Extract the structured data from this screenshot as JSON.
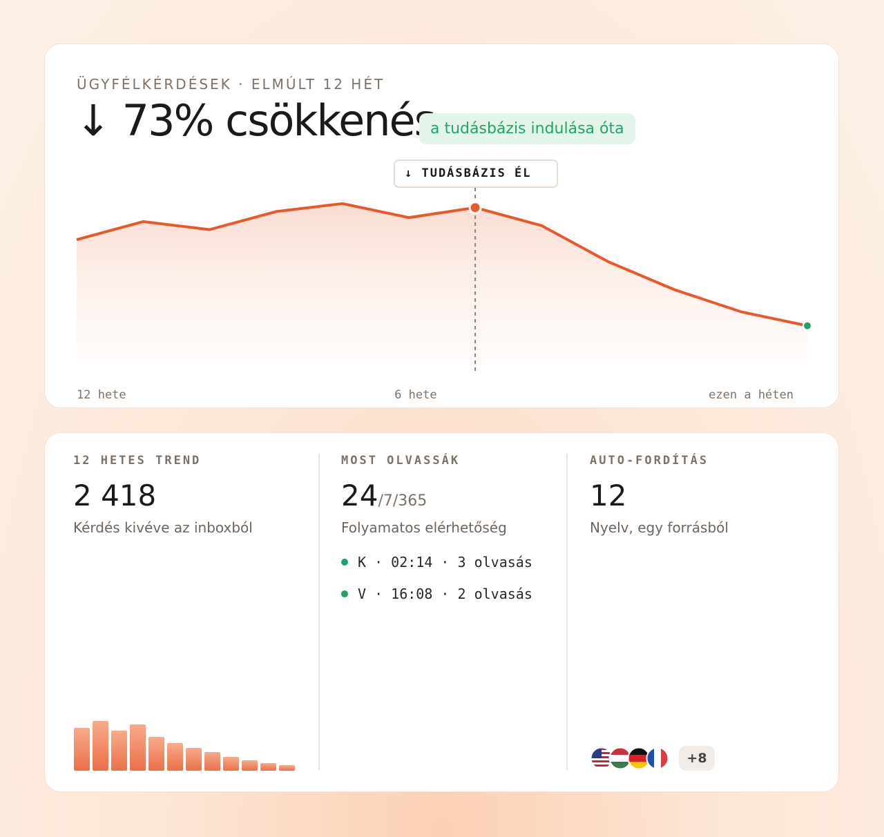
{
  "eyebrow": "ÜGYFÉLKÉRDÉSEK · ELMÚLT 12 HÉT",
  "headline": "↓ 73% csökkenés",
  "badge": "a tudásbázis indulása óta",
  "cards": [
    {
      "label": "12 HETES TREND",
      "value": "2 418",
      "caption": "Kérdés kivéve az inboxból"
    },
    {
      "label": "MOST OLVASSÁK",
      "value": "24",
      "value_suffix": "/7/365",
      "caption": "Folyamatos elérhetőség",
      "reads": [
        "K · 02:14 · 3 olvasás",
        "V · 16:08 · 2 olvasás"
      ]
    },
    {
      "label": "AUTO-FORDÍTÁS",
      "value": "12",
      "caption": "Nyelv, egy forrásból",
      "more": "+8"
    }
  ],
  "chart_data": [
    {
      "type": "line",
      "annotation": "↓ TUDÁSBÁZIS ÉL",
      "categories": [
        "12 hete",
        null,
        null,
        null,
        null,
        "6 hete",
        null,
        null,
        null,
        null,
        null,
        "ezen a héten"
      ],
      "values": [
        60,
        69,
        65,
        74,
        78,
        71,
        76,
        67,
        49,
        35,
        24,
        17
      ],
      "color": "#e8582a",
      "ylim": [
        0,
        100
      ]
    },
    {
      "type": "bar",
      "values": [
        62,
        72,
        58,
        67,
        49,
        40,
        33,
        27,
        20,
        15,
        11,
        8
      ],
      "color": "#ee7f5c",
      "ylim": [
        0,
        80
      ]
    }
  ]
}
